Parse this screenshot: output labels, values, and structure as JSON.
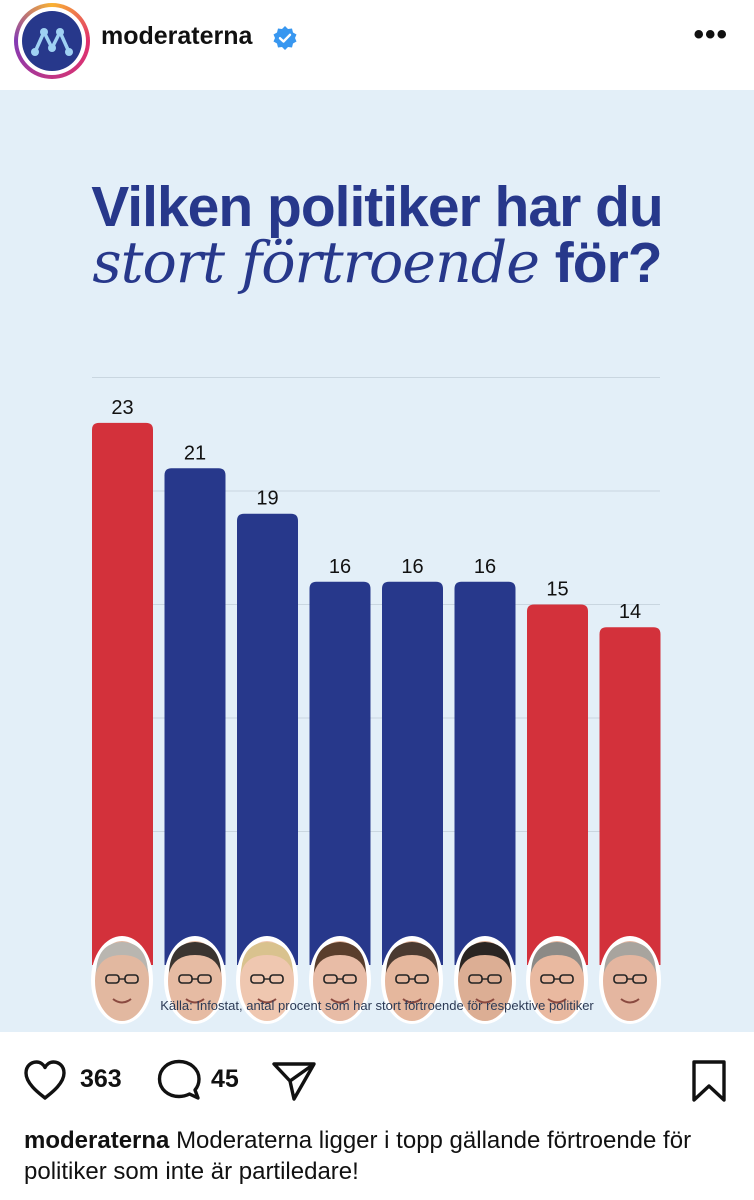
{
  "header": {
    "username": "moderaterna",
    "avatar_icon": "moderaterna-logo-icon",
    "verified_icon": "verified-badge-icon",
    "more_label": "•••"
  },
  "post": {
    "title_line1": "Vilken politiker har du",
    "title_line2_italic": "stort förtroende",
    "title_line2_bold": "för?",
    "source": "Källa: Infostat, antal procent som har stort förtroende för respektive politiker",
    "colors": {
      "background": "#e3eff8",
      "blue": "#27388b",
      "red": "#d3313b",
      "title": "#27388b"
    }
  },
  "chart_data": {
    "type": "bar",
    "title": "Vilken politiker har du stort förtroende för?",
    "categories": [
      "",
      "",
      "",
      "",
      "",
      "",
      "",
      ""
    ],
    "values": [
      23,
      21,
      19,
      16,
      16,
      16,
      15,
      14
    ],
    "bar_colors": [
      "#d3313b",
      "#27388b",
      "#27388b",
      "#27388b",
      "#27388b",
      "#27388b",
      "#d3313b",
      "#d3313b"
    ],
    "ylim": [
      0,
      25
    ],
    "grid": true,
    "xlabel": "",
    "ylabel": ""
  },
  "actions": {
    "likes": "363",
    "comments": "45",
    "like_icon": "heart-icon",
    "comment_icon": "comment-icon",
    "share_icon": "share-icon",
    "save_icon": "bookmark-icon"
  },
  "caption": {
    "username": "moderaterna",
    "text": "Moderaterna ligger i topp gällande förtroende för politiker som inte är partiledare!"
  }
}
